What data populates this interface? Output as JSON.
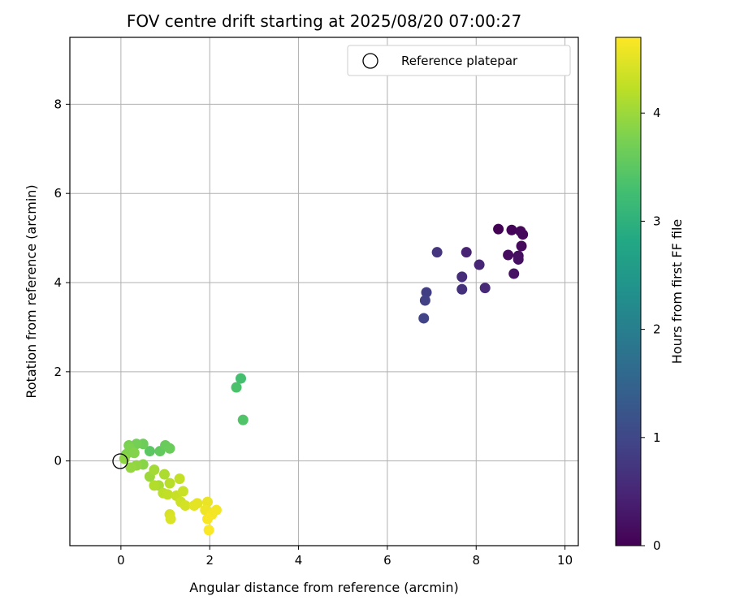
{
  "chart_data": {
    "type": "scatter",
    "title": "FOV centre drift starting at 2025/08/20 07:00:27",
    "xlabel": "Angular distance from reference (arcmin)",
    "ylabel": "Rotation from reference (arcmin)",
    "xlim": [
      -1.15,
      10.3
    ],
    "ylim": [
      -1.9,
      9.5
    ],
    "xticks": [
      0,
      2,
      4,
      6,
      8,
      10
    ],
    "yticks": [
      0,
      2,
      4,
      6,
      8
    ],
    "grid": true,
    "colormap": "viridis",
    "colorbar": {
      "label": "Hours from first FF file",
      "range": [
        0,
        4.7
      ],
      "ticks": [
        0,
        1,
        2,
        3,
        4
      ]
    },
    "legend": {
      "placement": "top-right",
      "entries": [
        {
          "label": "Reference platepar",
          "marker": "open-circle"
        }
      ]
    },
    "reference_point": {
      "x": 0,
      "y": 0
    },
    "points": [
      {
        "x": 8.5,
        "y": 5.2,
        "t": 0.02
      },
      {
        "x": 8.8,
        "y": 5.18,
        "t": 0.05
      },
      {
        "x": 9.0,
        "y": 5.15,
        "t": 0.08
      },
      {
        "x": 9.05,
        "y": 5.08,
        "t": 0.1
      },
      {
        "x": 9.02,
        "y": 4.82,
        "t": 0.12
      },
      {
        "x": 8.72,
        "y": 4.62,
        "t": 0.15
      },
      {
        "x": 8.95,
        "y": 4.6,
        "t": 0.17
      },
      {
        "x": 8.95,
        "y": 4.52,
        "t": 0.2
      },
      {
        "x": 8.85,
        "y": 4.2,
        "t": 0.22
      },
      {
        "x": 7.78,
        "y": 4.68,
        "t": 0.45
      },
      {
        "x": 8.07,
        "y": 4.4,
        "t": 0.5
      },
      {
        "x": 8.2,
        "y": 3.88,
        "t": 0.55
      },
      {
        "x": 7.68,
        "y": 4.13,
        "t": 0.6
      },
      {
        "x": 7.68,
        "y": 3.85,
        "t": 0.65
      },
      {
        "x": 7.12,
        "y": 4.68,
        "t": 0.7
      },
      {
        "x": 6.88,
        "y": 3.78,
        "t": 0.85
      },
      {
        "x": 6.85,
        "y": 3.6,
        "t": 0.9
      },
      {
        "x": 6.82,
        "y": 3.2,
        "t": 0.95
      },
      {
        "x": 2.7,
        "y": 1.85,
        "t": 3.3
      },
      {
        "x": 2.6,
        "y": 1.65,
        "t": 3.35
      },
      {
        "x": 2.75,
        "y": 0.92,
        "t": 3.4
      },
      {
        "x": 0.65,
        "y": 0.22,
        "t": 3.5
      },
      {
        "x": 0.88,
        "y": 0.22,
        "t": 3.55
      },
      {
        "x": 1.0,
        "y": 0.35,
        "t": 3.6
      },
      {
        "x": 1.1,
        "y": 0.28,
        "t": 3.62
      },
      {
        "x": 0.5,
        "y": 0.38,
        "t": 3.65
      },
      {
        "x": 0.35,
        "y": 0.38,
        "t": 3.7
      },
      {
        "x": 0.18,
        "y": 0.35,
        "t": 3.75
      },
      {
        "x": 0.2,
        "y": 0.28,
        "t": 3.78
      },
      {
        "x": 0.12,
        "y": 0.15,
        "t": 3.8
      },
      {
        "x": 0.3,
        "y": 0.18,
        "t": 3.82
      },
      {
        "x": 0.5,
        "y": -0.08,
        "t": 3.85
      },
      {
        "x": 0.08,
        "y": 0.05,
        "t": 3.9
      },
      {
        "x": 0.35,
        "y": -0.1,
        "t": 3.92
      },
      {
        "x": 0.22,
        "y": -0.15,
        "t": 3.95
      },
      {
        "x": 0.65,
        "y": -0.35,
        "t": 4.0
      },
      {
        "x": 0.75,
        "y": -0.2,
        "t": 4.05
      },
      {
        "x": 0.85,
        "y": -0.55,
        "t": 4.1
      },
      {
        "x": 0.98,
        "y": -0.3,
        "t": 4.12
      },
      {
        "x": 0.75,
        "y": -0.55,
        "t": 4.15
      },
      {
        "x": 1.1,
        "y": -0.5,
        "t": 4.2
      },
      {
        "x": 0.95,
        "y": -0.72,
        "t": 4.22
      },
      {
        "x": 1.05,
        "y": -0.75,
        "t": 4.25
      },
      {
        "x": 1.32,
        "y": -0.4,
        "t": 4.28
      },
      {
        "x": 1.25,
        "y": -0.78,
        "t": 4.3
      },
      {
        "x": 1.4,
        "y": -0.68,
        "t": 4.32
      },
      {
        "x": 1.35,
        "y": -0.92,
        "t": 4.35
      },
      {
        "x": 1.45,
        "y": -1.0,
        "t": 4.4
      },
      {
        "x": 1.1,
        "y": -1.2,
        "t": 4.42
      },
      {
        "x": 1.12,
        "y": -1.3,
        "t": 4.45
      },
      {
        "x": 1.65,
        "y": -1.0,
        "t": 4.5
      },
      {
        "x": 1.72,
        "y": -0.95,
        "t": 4.52
      },
      {
        "x": 1.95,
        "y": -0.92,
        "t": 4.55
      },
      {
        "x": 1.9,
        "y": -1.1,
        "t": 4.58
      },
      {
        "x": 2.0,
        "y": -1.15,
        "t": 4.6
      },
      {
        "x": 2.15,
        "y": -1.1,
        "t": 4.62
      },
      {
        "x": 2.05,
        "y": -1.2,
        "t": 4.64
      },
      {
        "x": 1.95,
        "y": -1.3,
        "t": 4.66
      },
      {
        "x": 1.98,
        "y": -1.55,
        "t": 4.68
      }
    ]
  }
}
